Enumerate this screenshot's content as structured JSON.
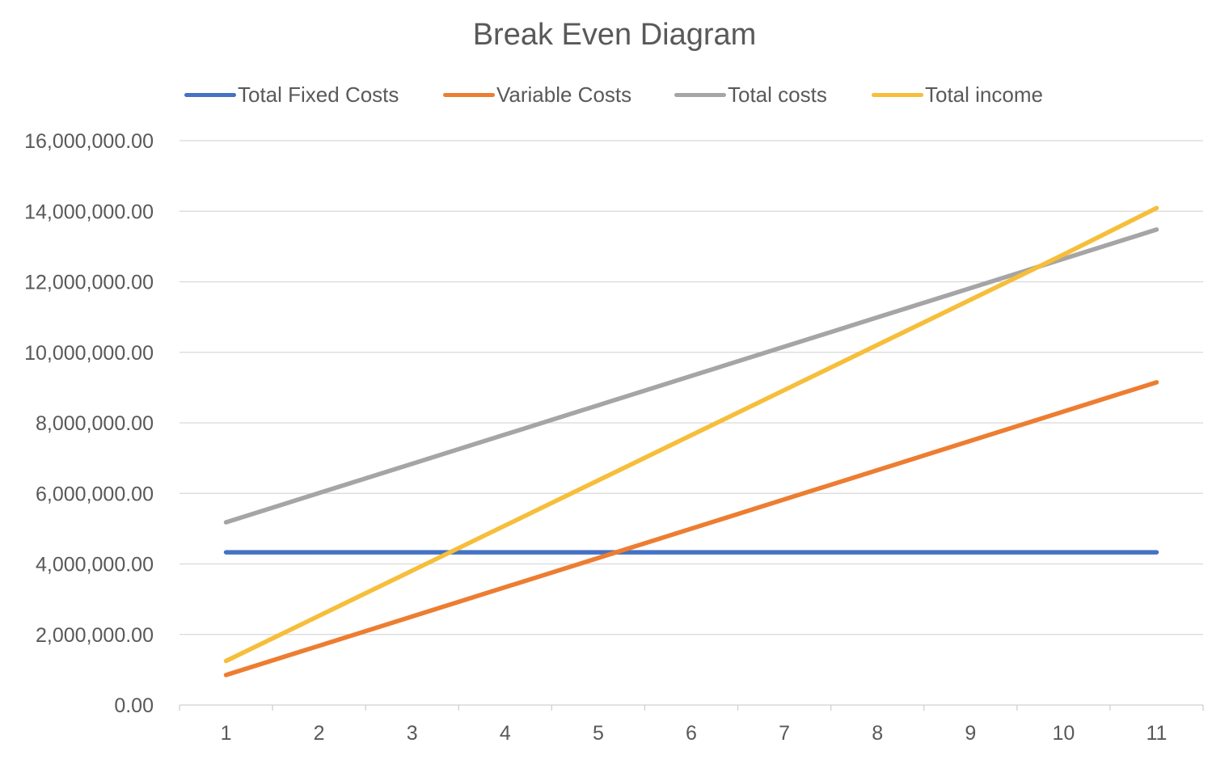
{
  "chart_data": {
    "type": "line",
    "title": "Break Even Diagram",
    "xlabel": "",
    "ylabel": "",
    "x": [
      1,
      2,
      3,
      4,
      5,
      6,
      7,
      8,
      9,
      10,
      11
    ],
    "ylim": [
      0,
      16000000
    ],
    "y_ticks": [
      0,
      2000000,
      4000000,
      6000000,
      8000000,
      10000000,
      12000000,
      14000000,
      16000000
    ],
    "y_tick_labels": [
      "0.00",
      "2,000,000.00",
      "4,000,000.00",
      "6,000,000.00",
      "8,000,000.00",
      "10,000,000.00",
      "12,000,000.00",
      "14,000,000.00",
      "16,000,000.00"
    ],
    "x_tick_labels": [
      "1",
      "2",
      "3",
      "4",
      "5",
      "6",
      "7",
      "8",
      "9",
      "10",
      "11"
    ],
    "grid": "horizontal",
    "legend_position": "top",
    "series": [
      {
        "name": "Total Fixed Costs",
        "color": "#4472C4",
        "values": [
          4330000,
          4330000,
          4330000,
          4330000,
          4330000,
          4330000,
          4330000,
          4330000,
          4330000,
          4330000,
          4330000
        ]
      },
      {
        "name": "Variable Costs",
        "color": "#ED7D31",
        "values": [
          850000,
          1680000,
          2510000,
          3340000,
          4170000,
          5000000,
          5830000,
          6660000,
          7490000,
          8320000,
          9150000
        ]
      },
      {
        "name": "Total costs",
        "color": "#A5A5A5",
        "values": [
          5180000,
          6010000,
          6840000,
          7670000,
          8500000,
          9330000,
          10160000,
          10990000,
          11820000,
          12650000,
          13480000
        ]
      },
      {
        "name": "Total income",
        "color": "#F6BE3A",
        "values": [
          1250000,
          2530000,
          3810000,
          5090000,
          6370000,
          7650000,
          8930000,
          10210000,
          11490000,
          12770000,
          14090000
        ]
      }
    ]
  }
}
